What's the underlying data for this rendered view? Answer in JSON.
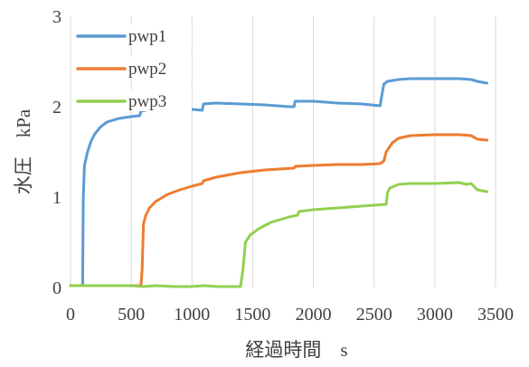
{
  "chart_data": {
    "type": "line",
    "title": "",
    "xlabel": "経過時間　s",
    "ylabel": "水圧　kPa",
    "xlim": [
      0,
      3500
    ],
    "ylim": [
      0,
      3
    ],
    "xticks": [
      "0",
      "500",
      "1000",
      "1500",
      "2000",
      "2500",
      "3000",
      "3500"
    ],
    "yticks": [
      "0",
      "1",
      "2",
      "3"
    ],
    "grid": "vertical",
    "legend": "top-left",
    "series": [
      {
        "name": "pwp1",
        "color": "#5b9bd5",
        "points": [
          [
            0,
            0.02
          ],
          [
            100,
            0.02
          ],
          [
            105,
            1.0
          ],
          [
            115,
            1.35
          ],
          [
            140,
            1.5
          ],
          [
            170,
            1.62
          ],
          [
            200,
            1.7
          ],
          [
            250,
            1.78
          ],
          [
            300,
            1.83
          ],
          [
            400,
            1.87
          ],
          [
            500,
            1.89
          ],
          [
            570,
            1.9
          ],
          [
            580,
            1.95
          ],
          [
            650,
            1.97
          ],
          [
            800,
            1.98
          ],
          [
            1000,
            1.97
          ],
          [
            1085,
            1.96
          ],
          [
            1095,
            2.03
          ],
          [
            1200,
            2.04
          ],
          [
            1400,
            2.03
          ],
          [
            1600,
            2.02
          ],
          [
            1800,
            2.0
          ],
          [
            1840,
            2.0
          ],
          [
            1850,
            2.06
          ],
          [
            2000,
            2.06
          ],
          [
            2200,
            2.04
          ],
          [
            2400,
            2.03
          ],
          [
            2550,
            2.01
          ],
          [
            2560,
            2.1
          ],
          [
            2580,
            2.25
          ],
          [
            2610,
            2.28
          ],
          [
            2700,
            2.3
          ],
          [
            2800,
            2.31
          ],
          [
            3000,
            2.31
          ],
          [
            3200,
            2.31
          ],
          [
            3300,
            2.3
          ],
          [
            3350,
            2.28
          ],
          [
            3430,
            2.26
          ]
        ]
      },
      {
        "name": "pwp2",
        "color": "#ed7d31",
        "points": [
          [
            0,
            0.02
          ],
          [
            580,
            0.02
          ],
          [
            590,
            0.2
          ],
          [
            600,
            0.7
          ],
          [
            620,
            0.8
          ],
          [
            650,
            0.88
          ],
          [
            700,
            0.95
          ],
          [
            800,
            1.03
          ],
          [
            900,
            1.08
          ],
          [
            1000,
            1.12
          ],
          [
            1085,
            1.15
          ],
          [
            1095,
            1.18
          ],
          [
            1200,
            1.22
          ],
          [
            1400,
            1.27
          ],
          [
            1600,
            1.3
          ],
          [
            1840,
            1.32
          ],
          [
            1850,
            1.34
          ],
          [
            2000,
            1.35
          ],
          [
            2200,
            1.36
          ],
          [
            2400,
            1.36
          ],
          [
            2550,
            1.37
          ],
          [
            2580,
            1.4
          ],
          [
            2600,
            1.5
          ],
          [
            2650,
            1.6
          ],
          [
            2700,
            1.65
          ],
          [
            2800,
            1.68
          ],
          [
            3000,
            1.69
          ],
          [
            3200,
            1.69
          ],
          [
            3300,
            1.68
          ],
          [
            3350,
            1.64
          ],
          [
            3430,
            1.63
          ]
        ]
      },
      {
        "name": "pwp3",
        "color": "#92d050",
        "points": [
          [
            0,
            0.02
          ],
          [
            500,
            0.02
          ],
          [
            600,
            0.01
          ],
          [
            700,
            0.02
          ],
          [
            850,
            0.01
          ],
          [
            1000,
            0.01
          ],
          [
            1100,
            0.02
          ],
          [
            1200,
            0.01
          ],
          [
            1400,
            0.01
          ],
          [
            1420,
            0.2
          ],
          [
            1440,
            0.5
          ],
          [
            1480,
            0.58
          ],
          [
            1550,
            0.65
          ],
          [
            1650,
            0.72
          ],
          [
            1800,
            0.78
          ],
          [
            1870,
            0.8
          ],
          [
            1880,
            0.84
          ],
          [
            2000,
            0.86
          ],
          [
            2200,
            0.88
          ],
          [
            2400,
            0.9
          ],
          [
            2600,
            0.92
          ],
          [
            2610,
            1.05
          ],
          [
            2630,
            1.1
          ],
          [
            2700,
            1.14
          ],
          [
            2800,
            1.15
          ],
          [
            3000,
            1.15
          ],
          [
            3200,
            1.16
          ],
          [
            3260,
            1.14
          ],
          [
            3300,
            1.15
          ],
          [
            3350,
            1.08
          ],
          [
            3430,
            1.06
          ]
        ]
      }
    ]
  }
}
